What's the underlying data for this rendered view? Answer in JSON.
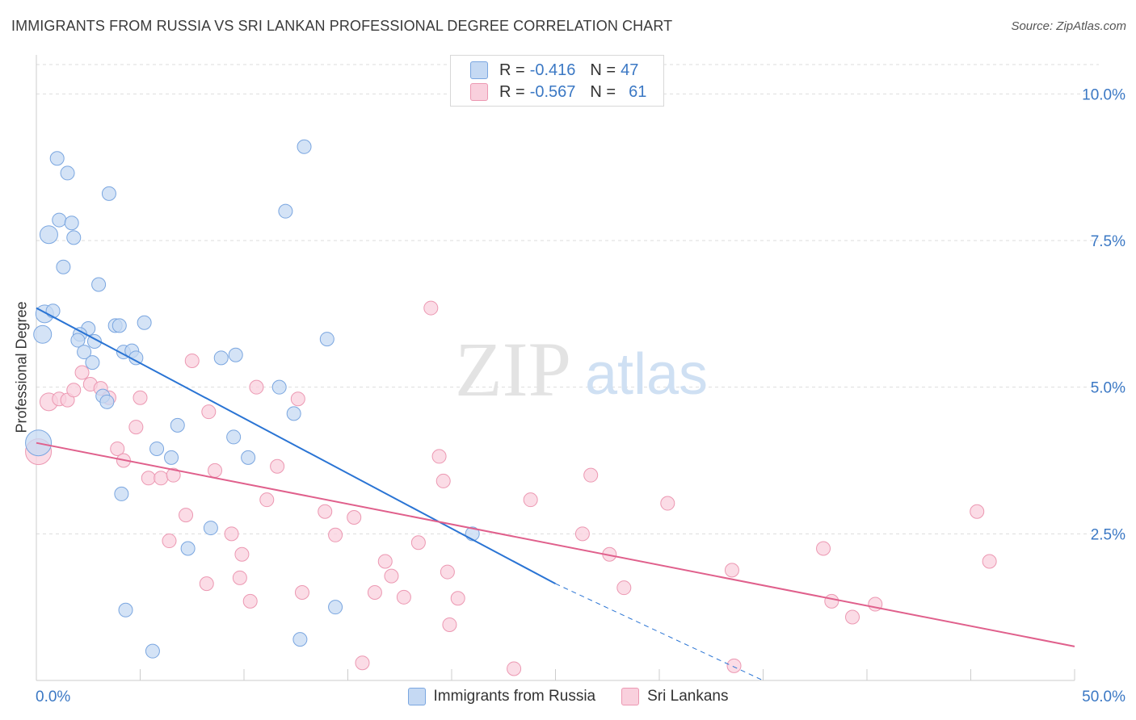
{
  "title": "IMMIGRANTS FROM RUSSIA VS SRI LANKAN PROFESSIONAL DEGREE CORRELATION CHART",
  "source": "Source: ZipAtlas.com",
  "watermark": {
    "zip": "ZIP",
    "atlas": "atlas"
  },
  "legend": {
    "rows": [
      {
        "r_label": "R =",
        "r_value": "-0.416",
        "n_label": "N =",
        "n_value": "47",
        "color": "#a9c8f0",
        "border": "#6d9fe0"
      },
      {
        "r_label": "R =",
        "r_value": "-0.567",
        "n_label": "N =",
        "n_value": "61",
        "color": "#f8c4d4",
        "border": "#e890aa"
      }
    ]
  },
  "colors": {
    "blue_fill": "#c5d9f3",
    "blue_stroke": "#7aa6e0",
    "blue_line": "#2a74d4",
    "pink_fill": "#f9d0dd",
    "pink_stroke": "#ec98b2",
    "pink_line": "#e0608c",
    "tick_color": "#3b78c4",
    "grid": "#dddddd"
  },
  "chart_data": {
    "type": "scatter",
    "title": "IMMIGRANTS FROM RUSSIA VS SRI LANKAN PROFESSIONAL DEGREE CORRELATION CHART",
    "xlabel": "",
    "ylabel": "Professional Degree",
    "xlim": [
      0,
      50
    ],
    "ylim": [
      0,
      10.5
    ],
    "x_tick_labels": [
      "0.0%",
      "50.0%"
    ],
    "y_ticks": [
      2.5,
      5.0,
      7.5,
      10.0
    ],
    "y_tick_labels": [
      "2.5%",
      "5.0%",
      "7.5%",
      "10.0%"
    ],
    "grid": true,
    "legend_placement": "bottom",
    "series": [
      {
        "name": "Immigrants from Russia",
        "points": [
          [
            1.0,
            8.9
          ],
          [
            1.5,
            8.65
          ],
          [
            3.5,
            8.3
          ],
          [
            1.1,
            7.85
          ],
          [
            1.7,
            7.8
          ],
          [
            0.6,
            7.6
          ],
          [
            1.8,
            7.55
          ],
          [
            1.3,
            7.05
          ],
          [
            3.0,
            6.75
          ],
          [
            0.4,
            6.25
          ],
          [
            0.8,
            6.3
          ],
          [
            0.3,
            5.9
          ],
          [
            2.5,
            6.0
          ],
          [
            3.8,
            6.05
          ],
          [
            4.0,
            6.05
          ],
          [
            5.2,
            6.1
          ],
          [
            2.1,
            5.9
          ],
          [
            2.0,
            5.8
          ],
          [
            2.8,
            5.78
          ],
          [
            2.3,
            5.6
          ],
          [
            4.2,
            5.6
          ],
          [
            4.6,
            5.62
          ],
          [
            4.8,
            5.5
          ],
          [
            2.7,
            5.42
          ],
          [
            8.9,
            5.5
          ],
          [
            9.6,
            5.55
          ],
          [
            14.0,
            5.82
          ],
          [
            3.2,
            4.85
          ],
          [
            3.4,
            4.75
          ],
          [
            11.7,
            5.0
          ],
          [
            12.4,
            4.55
          ],
          [
            6.8,
            4.35
          ],
          [
            9.5,
            4.15
          ],
          [
            5.8,
            3.95
          ],
          [
            6.5,
            3.8
          ],
          [
            10.2,
            3.8
          ],
          [
            4.1,
            3.18
          ],
          [
            8.4,
            2.6
          ],
          [
            7.3,
            2.25
          ],
          [
            4.3,
            1.2
          ],
          [
            12.7,
            0.7
          ],
          [
            5.6,
            0.5
          ],
          [
            14.4,
            1.25
          ],
          [
            12.0,
            8.0
          ],
          [
            12.9,
            9.1
          ],
          [
            21.0,
            2.5
          ],
          [
            0.1,
            4.05
          ]
        ],
        "trend": {
          "x0": 0,
          "y0": 6.35,
          "x1": 25,
          "y1": 1.65,
          "dashed_to_x": 35,
          "dashed_to_y": 0.0
        }
      },
      {
        "name": "Sri Lankans",
        "points": [
          [
            0.6,
            4.75
          ],
          [
            1.1,
            4.8
          ],
          [
            1.5,
            4.78
          ],
          [
            1.8,
            4.95
          ],
          [
            2.2,
            5.25
          ],
          [
            2.6,
            5.05
          ],
          [
            3.1,
            4.98
          ],
          [
            3.5,
            4.82
          ],
          [
            5.0,
            4.82
          ],
          [
            4.8,
            4.32
          ],
          [
            7.5,
            5.45
          ],
          [
            8.3,
            4.58
          ],
          [
            10.6,
            5.0
          ],
          [
            12.6,
            4.8
          ],
          [
            3.9,
            3.95
          ],
          [
            4.2,
            3.75
          ],
          [
            5.4,
            3.45
          ],
          [
            6.0,
            3.45
          ],
          [
            6.6,
            3.5
          ],
          [
            8.6,
            3.58
          ],
          [
            11.6,
            3.65
          ],
          [
            7.2,
            2.82
          ],
          [
            11.1,
            3.08
          ],
          [
            13.9,
            2.88
          ],
          [
            15.3,
            2.78
          ],
          [
            6.4,
            2.38
          ],
          [
            9.4,
            2.5
          ],
          [
            14.4,
            2.48
          ],
          [
            9.9,
            2.15
          ],
          [
            8.2,
            1.65
          ],
          [
            9.8,
            1.75
          ],
          [
            10.3,
            1.35
          ],
          [
            12.8,
            1.5
          ],
          [
            16.3,
            1.5
          ],
          [
            16.8,
            2.03
          ],
          [
            17.1,
            1.78
          ],
          [
            17.7,
            1.42
          ],
          [
            18.4,
            2.35
          ],
          [
            19.6,
            3.4
          ],
          [
            19.4,
            3.82
          ],
          [
            19.8,
            1.85
          ],
          [
            20.3,
            1.4
          ],
          [
            19.9,
            0.95
          ],
          [
            23.8,
            3.08
          ],
          [
            26.3,
            2.5
          ],
          [
            26.7,
            3.5
          ],
          [
            27.6,
            2.15
          ],
          [
            28.3,
            1.58
          ],
          [
            30.4,
            3.02
          ],
          [
            33.5,
            1.88
          ],
          [
            37.9,
            2.25
          ],
          [
            38.3,
            1.35
          ],
          [
            39.3,
            1.08
          ],
          [
            40.4,
            1.3
          ],
          [
            45.3,
            2.88
          ],
          [
            45.9,
            2.03
          ],
          [
            19.0,
            6.35
          ],
          [
            15.7,
            0.3
          ],
          [
            23.0,
            0.2
          ],
          [
            33.6,
            0.25
          ],
          [
            0.1,
            3.9
          ]
        ],
        "trend": {
          "x0": 0,
          "y0": 4.05,
          "x1": 50,
          "y1": 0.58
        }
      }
    ]
  },
  "bottom_legend": {
    "items": [
      {
        "label": "Immigrants from Russia"
      },
      {
        "label": "Sri Lankans"
      }
    ]
  }
}
